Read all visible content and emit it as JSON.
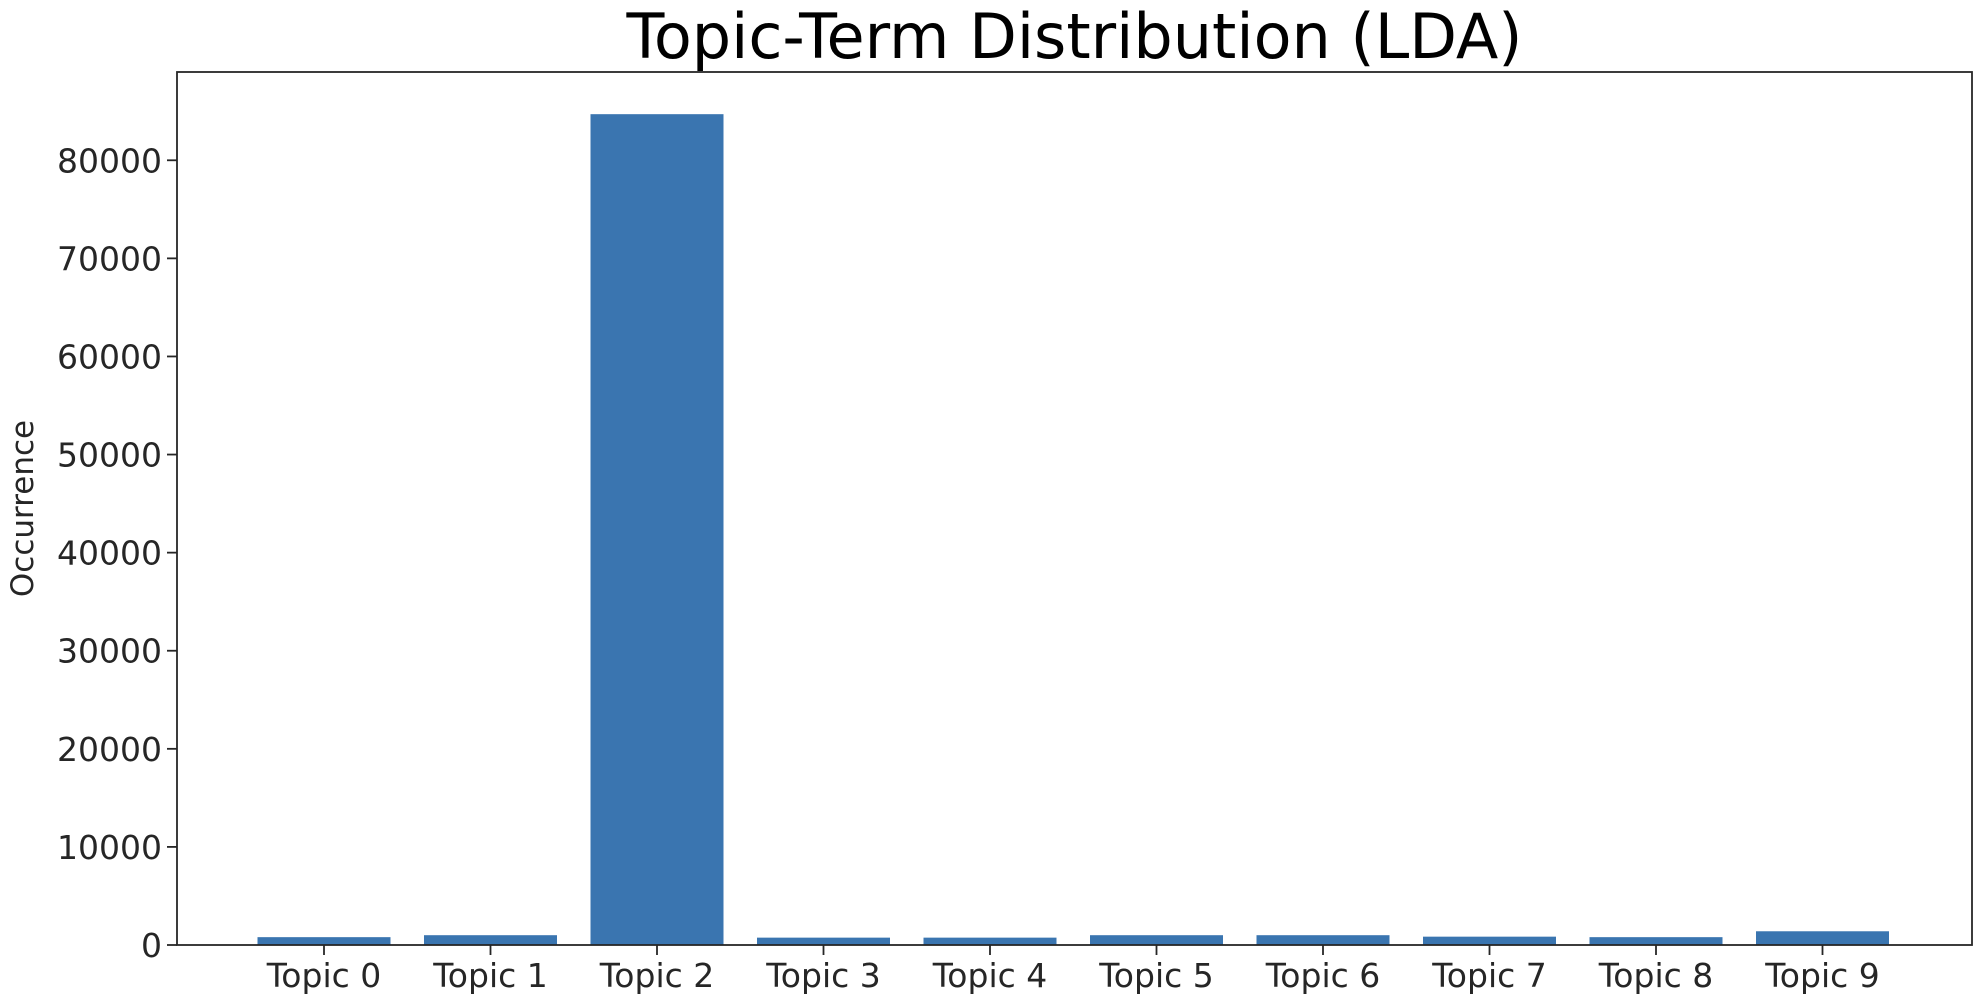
{
  "chart_data": {
    "type": "bar",
    "title": "Topic-Term Distribution (LDA)",
    "xlabel": "",
    "ylabel": "Occurrence",
    "categories": [
      "Topic 0",
      "Topic 1",
      "Topic 2",
      "Topic 3",
      "Topic 4",
      "Topic 5",
      "Topic 6",
      "Topic 7",
      "Topic 8",
      "Topic 9"
    ],
    "values": [
      800,
      1000,
      84700,
      750,
      750,
      1000,
      1000,
      850,
      800,
      1400
    ],
    "ylim": [
      0,
      89000
    ],
    "yticks": [
      0,
      10000,
      20000,
      30000,
      40000,
      50000,
      60000,
      70000,
      80000
    ],
    "yticklabels": [
      "0",
      "10000",
      "20000",
      "30000",
      "40000",
      "50000",
      "60000",
      "70000",
      "80000"
    ],
    "grid": false,
    "bar_color": "#3a75b0"
  }
}
